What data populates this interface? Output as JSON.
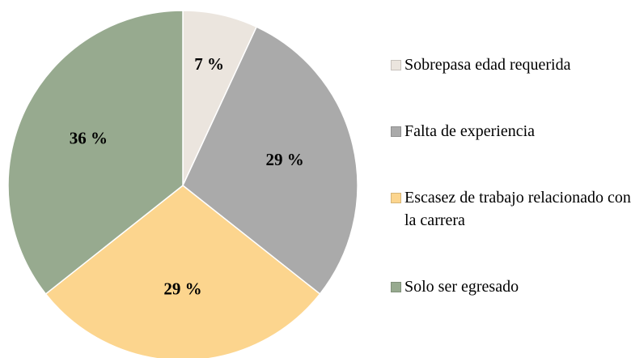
{
  "chart_data": {
    "type": "pie",
    "categories": [
      "Sobrepasa edad requerida",
      "Falta de experiencia",
      "Escasez de trabajo relacionado con la carrera",
      "Solo ser egresado"
    ],
    "values": [
      7,
      29,
      29,
      36
    ],
    "value_labels": [
      "7 %",
      "29 %",
      "29 %",
      "36 %"
    ],
    "colors": [
      "#ebe5de",
      "#aaaaaa",
      "#fcd58e",
      "#97aa8f"
    ],
    "legend": "right"
  }
}
